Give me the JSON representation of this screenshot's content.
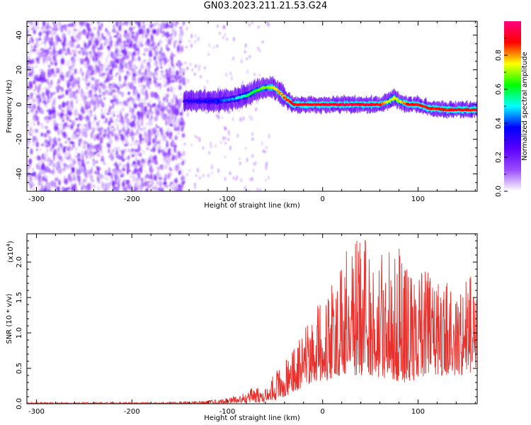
{
  "title": "GN03.2023.211.21.53.G24",
  "chart_data": [
    {
      "type": "heatmap",
      "xlabel": "Height of straight line (km)",
      "ylabel": "Frequency (Hz)",
      "xlim": [
        -310,
        162
      ],
      "ylim": [
        -50,
        48
      ],
      "xticks": [
        -300,
        -200,
        -100,
        0,
        100
      ],
      "yticks": [
        -40,
        -20,
        0,
        20,
        40
      ],
      "colorbar": {
        "label": "Normalized spectral amplitude",
        "range": [
          0.0,
          1.0
        ],
        "ticks": [
          0.0,
          0.2,
          0.4,
          0.6,
          0.8
        ],
        "colors": [
          "#ffffff",
          "#9b4dff",
          "#5a00ff",
          "#0000ff",
          "#00ffff",
          "#00ff00",
          "#ffff00",
          "#ff0000",
          "#ff0080"
        ]
      },
      "ridge": {
        "x": [
          -145,
          -130,
          -110,
          -95,
          -80,
          -70,
          -60,
          -52,
          -45,
          -38,
          -30,
          -25,
          -20,
          -10,
          0,
          20,
          40,
          60,
          70,
          75,
          80,
          90,
          100,
          110,
          130,
          150,
          162
        ],
        "frequency": [
          2,
          2,
          2,
          3,
          5,
          8,
          10,
          10,
          7,
          3,
          0,
          0,
          0,
          0,
          0,
          0,
          0,
          0,
          2,
          4,
          2,
          0,
          0,
          -2,
          -3,
          -3,
          -3
        ],
        "amplitude": [
          0.3,
          0.35,
          0.4,
          0.45,
          0.55,
          0.65,
          0.7,
          0.75,
          0.8,
          0.85,
          0.9,
          0.9,
          0.9,
          0.9,
          0.92,
          0.95,
          0.95,
          0.9,
          0.7,
          0.75,
          0.7,
          0.9,
          0.9,
          0.9,
          0.9,
          0.9,
          0.9
        ]
      },
      "noise_region": {
        "x_from": -310,
        "x_to": -145,
        "amplitude_range": [
          0.0,
          0.2
        ]
      }
    },
    {
      "type": "line",
      "xlabel": "Height of straight line (km)",
      "ylabel": "SNR (10 * v/v)",
      "yscale_label": "(x10",
      "yscale_exponent": "4",
      "yscale_suffix": ")",
      "xlim": [
        -310,
        162
      ],
      "ylim": [
        0.0,
        2.4
      ],
      "xticks": [
        -300,
        -200,
        -100,
        0,
        100
      ],
      "yticks": [
        0.0,
        0.5,
        1.0,
        1.5,
        2.0
      ],
      "ytick_labels": [
        "0.0",
        "0.5",
        "1.0",
        "1.5",
        "2.0"
      ],
      "series": [
        {
          "color": "#e8302c",
          "x": [
            -310,
            -250,
            -200,
            -160,
            -140,
            -120,
            -110,
            -100,
            -90,
            -80,
            -70,
            -60,
            -50,
            -40,
            -30,
            -20,
            -10,
            0,
            10,
            20,
            30,
            40,
            50,
            60,
            70,
            80,
            90,
            100,
            110,
            120,
            130,
            140,
            150,
            162
          ],
          "envelope_min": [
            0.0,
            0.0,
            0.0,
            0.0,
            0.0,
            0.0,
            0.0,
            0.0,
            0.01,
            0.02,
            0.02,
            0.03,
            0.05,
            0.1,
            0.15,
            0.25,
            0.3,
            0.3,
            0.35,
            0.4,
            0.4,
            0.4,
            0.4,
            0.35,
            0.35,
            0.3,
            0.3,
            0.35,
            0.4,
            0.4,
            0.4,
            0.4,
            0.4,
            0.5
          ],
          "envelope_max": [
            0.02,
            0.02,
            0.02,
            0.02,
            0.04,
            0.05,
            0.06,
            0.09,
            0.12,
            0.18,
            0.25,
            0.22,
            0.45,
            0.6,
            0.85,
            1.1,
            1.3,
            1.6,
            1.85,
            2.1,
            2.3,
            2.4,
            2.25,
            2.1,
            2.2,
            2.4,
            2.0,
            1.95,
            1.9,
            1.8,
            1.75,
            1.6,
            2.15,
            1.6
          ]
        }
      ]
    }
  ]
}
